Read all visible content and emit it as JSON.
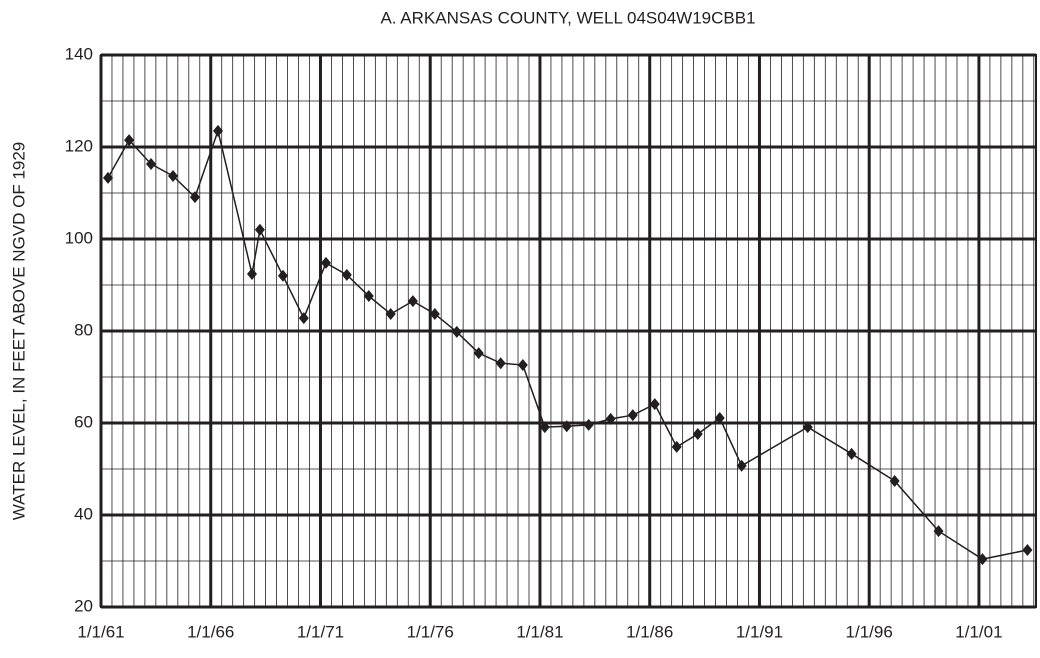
{
  "chart_data": {
    "type": "line",
    "title": "A. ARKANSAS COUNTY, WELL 04S04W19CBB1",
    "y_label": "WATER LEVEL,  IN  FEET ABOVE NGVD OF 1929",
    "x": [
      1961.32,
      1962.28,
      1963.28,
      1964.28,
      1965.28,
      1966.33,
      1967.88,
      1968.24,
      1969.29,
      1970.24,
      1971.25,
      1972.2,
      1973.2,
      1974.2,
      1975.21,
      1976.21,
      1977.21,
      1978.21,
      1979.21,
      1980.22,
      1981.22,
      1982.22,
      1983.22,
      1984.22,
      1985.23,
      1986.23,
      1987.23,
      1988.19,
      1989.19,
      1990.19,
      1993.2,
      1995.2,
      1997.16,
      1999.16,
      2001.16,
      2003.21
    ],
    "series": [
      {
        "name": "Water level",
        "color": "#231f20",
        "values": [
          113.3,
          121.5,
          116.3,
          113.7,
          109.1,
          123.5,
          92.4,
          102,
          92,
          82.8,
          94.8,
          92.2,
          87.6,
          83.7,
          86.5,
          83.7,
          79.8,
          75.2,
          73,
          72.6,
          59.1,
          59.3,
          59.6,
          60.9,
          61.7,
          64.1,
          54.8,
          57.6,
          61.1,
          50.7,
          59.1,
          53.3,
          47.4,
          36.5,
          30.4,
          32.4
        ]
      }
    ],
    "xlim": [
      1961,
      2003.6
    ],
    "xticks": [
      {
        "value": 1961,
        "label": "1/1/61"
      },
      {
        "value": 1966,
        "label": "1/1/66"
      },
      {
        "value": 1971,
        "label": "1/1/71"
      },
      {
        "value": 1976,
        "label": "1/1/76"
      },
      {
        "value": 1981,
        "label": "1/1/81"
      },
      {
        "value": 1986,
        "label": "1/1/86"
      },
      {
        "value": 1991,
        "label": "1/1/91"
      },
      {
        "value": 1996,
        "label": "1/1/96"
      },
      {
        "value": 2001,
        "label": "1/1/01"
      }
    ],
    "ylim": [
      20,
      140
    ],
    "yticks": [
      20,
      40,
      60,
      80,
      100,
      120,
      140
    ],
    "grid": true
  }
}
